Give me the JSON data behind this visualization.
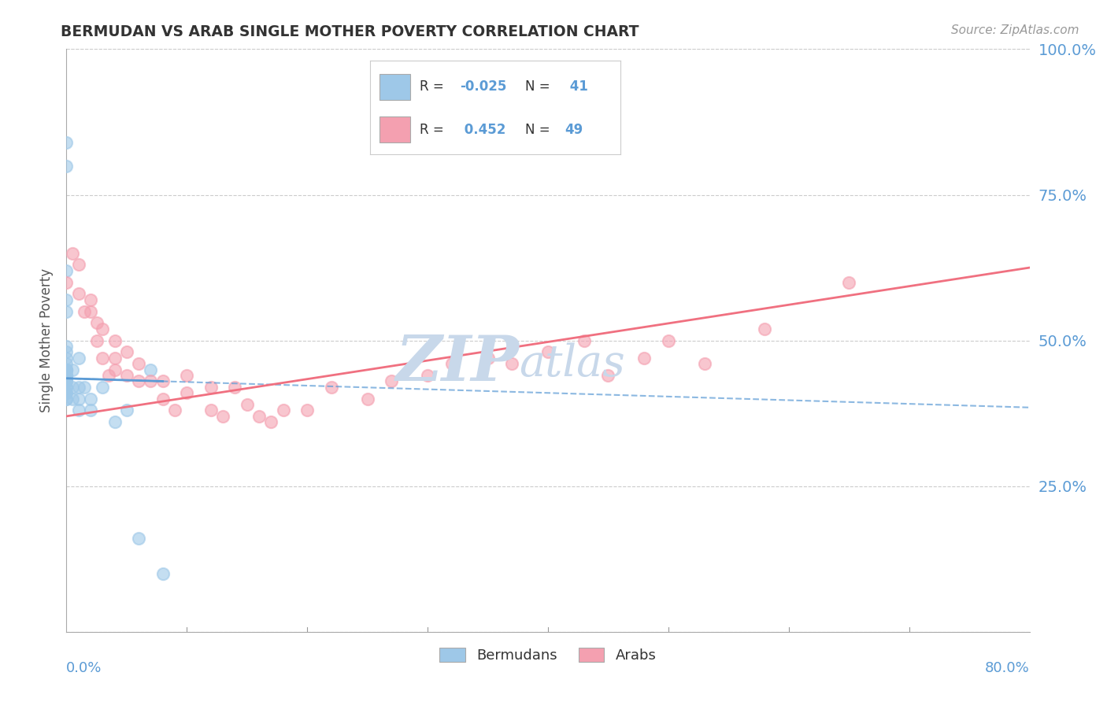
{
  "title": "BERMUDAN VS ARAB SINGLE MOTHER POVERTY CORRELATION CHART",
  "source": "Source: ZipAtlas.com",
  "ylabel": "Single Mother Poverty",
  "xmin": 0.0,
  "xmax": 0.8,
  "ymin": 0.0,
  "ymax": 1.0,
  "yticks": [
    0.0,
    0.25,
    0.5,
    0.75,
    1.0
  ],
  "ytick_labels": [
    "",
    "25.0%",
    "50.0%",
    "75.0%",
    "100.0%"
  ],
  "legend_R1": "R = ",
  "legend_R1val": "-0.025",
  "legend_N1": "N = ",
  "legend_N1val": " 41",
  "legend_R2val": " 0.452",
  "legend_N2val": "49",
  "watermark_part1": "ZIP",
  "watermark_part2": "atlas",
  "watermark_color": "#c8d8ea",
  "bermudans_x": [
    0.0,
    0.0,
    0.0,
    0.0,
    0.0,
    0.0,
    0.0,
    0.0,
    0.0,
    0.0,
    0.0,
    0.0,
    0.0,
    0.0,
    0.0,
    0.0,
    0.0,
    0.0,
    0.0,
    0.0,
    0.0,
    0.0,
    0.0,
    0.0,
    0.0,
    0.005,
    0.005,
    0.005,
    0.01,
    0.01,
    0.01,
    0.01,
    0.015,
    0.02,
    0.02,
    0.03,
    0.04,
    0.05,
    0.06,
    0.07,
    0.08
  ],
  "bermudans_y": [
    0.4,
    0.4,
    0.41,
    0.41,
    0.42,
    0.42,
    0.43,
    0.43,
    0.43,
    0.44,
    0.44,
    0.44,
    0.45,
    0.45,
    0.45,
    0.45,
    0.46,
    0.47,
    0.48,
    0.49,
    0.55,
    0.57,
    0.62,
    0.8,
    0.84,
    0.4,
    0.42,
    0.45,
    0.38,
    0.4,
    0.42,
    0.47,
    0.42,
    0.38,
    0.4,
    0.42,
    0.36,
    0.38,
    0.16,
    0.45,
    0.1
  ],
  "arabs_x": [
    0.0,
    0.005,
    0.01,
    0.01,
    0.015,
    0.02,
    0.02,
    0.025,
    0.025,
    0.03,
    0.03,
    0.035,
    0.04,
    0.04,
    0.04,
    0.05,
    0.05,
    0.06,
    0.06,
    0.07,
    0.08,
    0.08,
    0.09,
    0.1,
    0.1,
    0.12,
    0.12,
    0.13,
    0.14,
    0.15,
    0.16,
    0.17,
    0.18,
    0.2,
    0.22,
    0.25,
    0.27,
    0.3,
    0.32,
    0.35,
    0.37,
    0.4,
    0.43,
    0.45,
    0.48,
    0.5,
    0.53,
    0.58,
    0.65
  ],
  "arabs_y": [
    0.6,
    0.65,
    0.58,
    0.63,
    0.55,
    0.55,
    0.57,
    0.5,
    0.53,
    0.52,
    0.47,
    0.44,
    0.47,
    0.45,
    0.5,
    0.44,
    0.48,
    0.43,
    0.46,
    0.43,
    0.4,
    0.43,
    0.38,
    0.41,
    0.44,
    0.38,
    0.42,
    0.37,
    0.42,
    0.39,
    0.37,
    0.36,
    0.38,
    0.38,
    0.42,
    0.4,
    0.43,
    0.44,
    0.46,
    0.47,
    0.46,
    0.48,
    0.5,
    0.44,
    0.47,
    0.5,
    0.46,
    0.52,
    0.6
  ],
  "blue_dot_color": "#9ec8e8",
  "pink_dot_color": "#f4a0b0",
  "blue_line_color": "#5b9bd5",
  "pink_line_color": "#f07080",
  "background_color": "#ffffff",
  "grid_color": "#cccccc",
  "title_color": "#333333",
  "axis_label_color": "#5b9bd5",
  "ylabel_color": "#555555"
}
